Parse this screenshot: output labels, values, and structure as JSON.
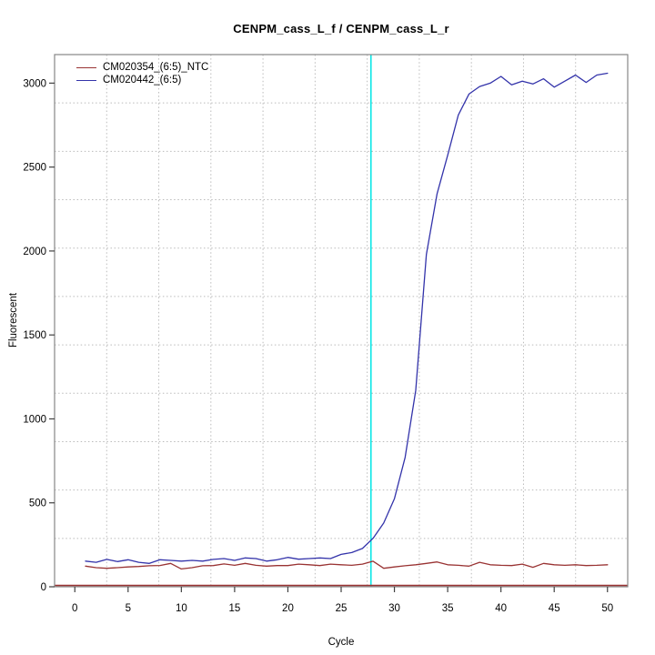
{
  "chart_data": {
    "type": "line",
    "title": "CENPM_cass_L_f / CENPM_cass_L_r",
    "xlabel": "Cycle",
    "ylabel": "Fluorescent",
    "xlim": [
      -1.9,
      51.9
    ],
    "ylim": [
      0,
      3170
    ],
    "x_ticks": [
      0,
      5,
      10,
      15,
      20,
      25,
      30,
      35,
      40,
      45,
      50
    ],
    "y_ticks": [
      0,
      500,
      1000,
      1500,
      2000,
      2500,
      3000
    ],
    "grid": {
      "divisions": 11,
      "style": "dotted",
      "color": "#bbbbbb"
    },
    "frame_color": "#878787",
    "tick_color": "#404040",
    "legend_position": "top-left",
    "threshold_cycle_line": {
      "cycle": 27.8,
      "color": "#00e6e6"
    },
    "baseline": {
      "value": 8,
      "color": "#993333"
    },
    "cycles": [
      1,
      2,
      3,
      4,
      5,
      6,
      7,
      8,
      9,
      10,
      11,
      12,
      13,
      14,
      15,
      16,
      17,
      18,
      19,
      20,
      21,
      22,
      23,
      24,
      25,
      26,
      27,
      28,
      29,
      30,
      31,
      32,
      33,
      34,
      35,
      36,
      37,
      38,
      39,
      40,
      41,
      42,
      43,
      44,
      45,
      46,
      47,
      48,
      49,
      50
    ],
    "series": [
      {
        "name": "CM020354_(6:5)_NTC",
        "color": "#993333",
        "values": [
          123,
          114,
          110,
          114,
          118,
          121,
          125,
          127,
          139,
          106,
          114,
          125,
          126,
          136,
          128,
          139,
          128,
          123,
          126,
          126,
          135,
          131,
          126,
          135,
          131,
          128,
          135,
          152,
          110,
          118,
          125,
          131,
          139,
          148,
          131,
          128,
          123,
          146,
          131,
          128,
          126,
          135,
          116,
          139,
          131,
          128,
          131,
          126,
          128,
          131
        ]
      },
      {
        "name": "CM020442_(6:5)",
        "color": "#3333aa",
        "values": [
          153,
          146,
          163,
          150,
          161,
          146,
          139,
          161,
          157,
          153,
          157,
          153,
          163,
          168,
          157,
          172,
          168,
          153,
          161,
          175,
          164,
          168,
          172,
          168,
          193,
          204,
          228,
          289,
          380,
          525,
          770,
          1170,
          1980,
          2340,
          2570,
          2810,
          2935,
          2980,
          3000,
          3040,
          2990,
          3012,
          2995,
          3026,
          2976,
          3012,
          3048,
          3004,
          3048,
          3059
        ]
      }
    ]
  }
}
